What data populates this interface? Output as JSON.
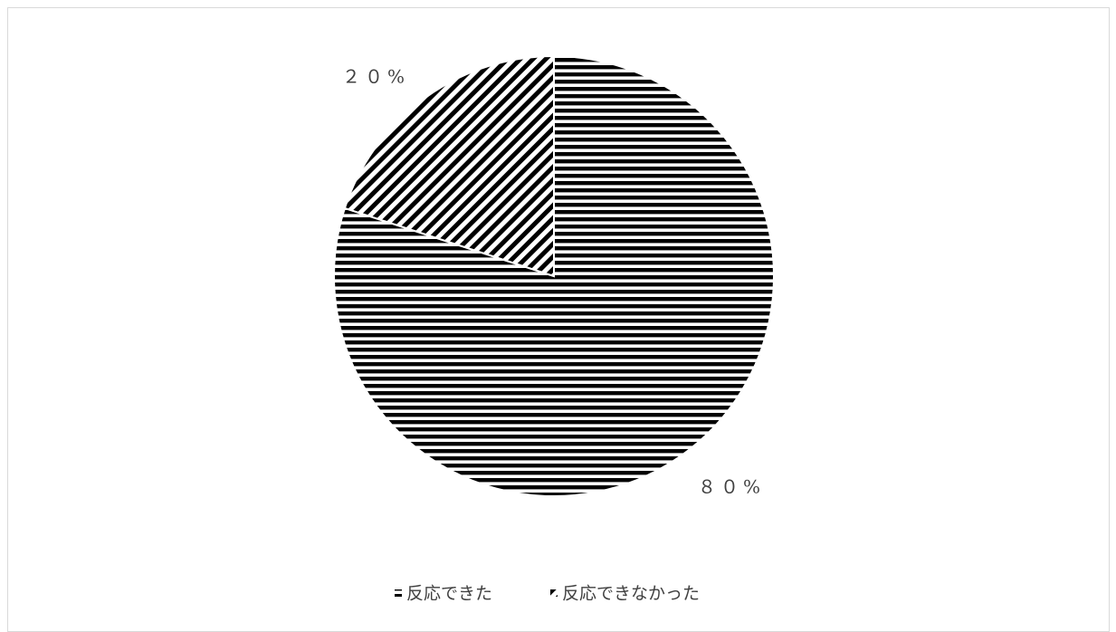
{
  "chart_data": {
    "type": "pie",
    "title": "",
    "slices": [
      {
        "label": "反応できた",
        "value": 80,
        "data_label": "８０%",
        "pattern": "horizontal"
      },
      {
        "label": "反応できなかった",
        "value": 20,
        "data_label": "２０%",
        "pattern": "diagonal"
      }
    ],
    "legend_placement": "bottom",
    "colors": {
      "fill": "#000000",
      "background": "#ffffff",
      "text": "#404040",
      "border": "#d9d9d9"
    }
  }
}
